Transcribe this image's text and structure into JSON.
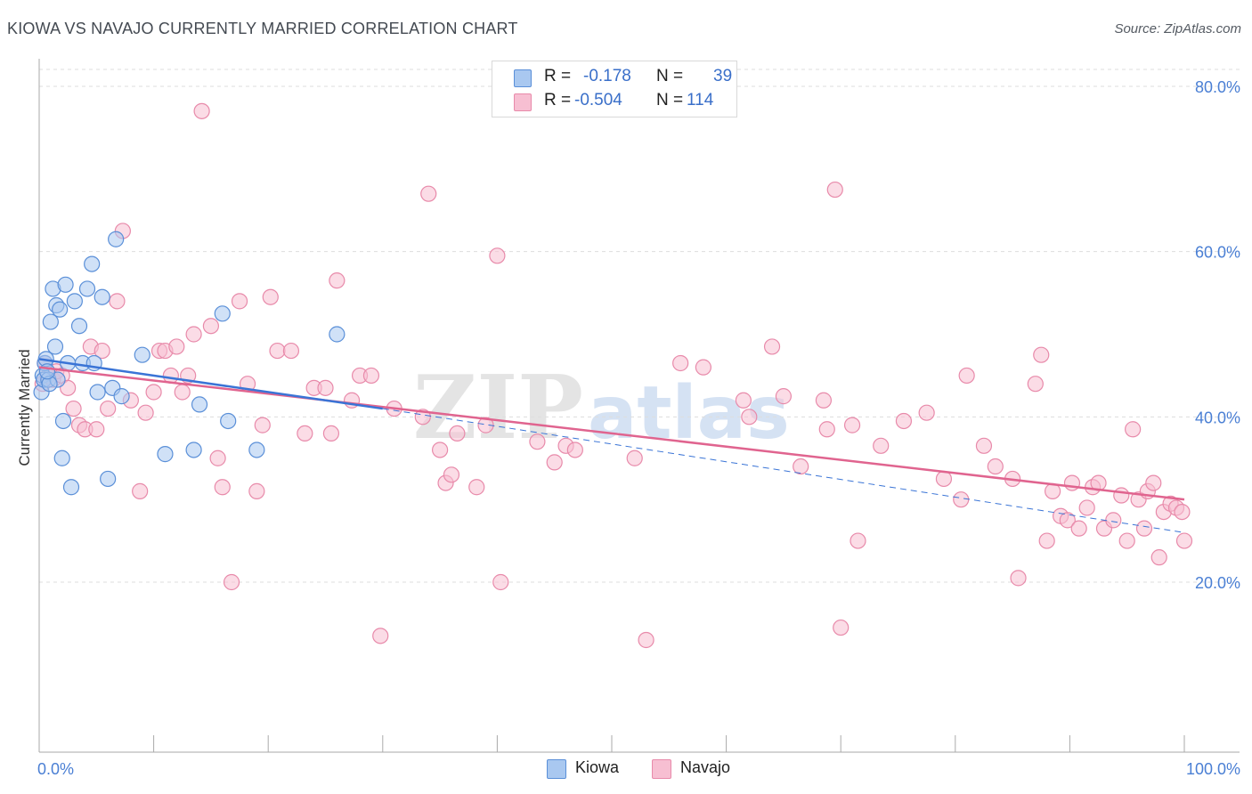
{
  "title": "KIOWA VS NAVAJO CURRENTLY MARRIED CORRELATION CHART",
  "source": "Source: ZipAtlas.com",
  "watermark": {
    "part1": "ZIP",
    "part2": "atlas"
  },
  "legend_top": {
    "rows": [
      {
        "r_label": "R =",
        "r_value": "-0.178",
        "n_label": "N =",
        "n_value": "39"
      },
      {
        "r_label": "R =",
        "r_value": "-0.504",
        "n_label": "N =",
        "n_value": "114"
      }
    ]
  },
  "colors": {
    "kiowa_fill": "#a9c8f0",
    "kiowa_stroke": "#5a8fd8",
    "kiowa_line": "#3a74d6",
    "navajo_fill": "#f7bfd2",
    "navajo_stroke": "#e88aaa",
    "navajo_line": "#e0648f",
    "tick_text": "#4a7fd4",
    "grid": "#dddddd"
  },
  "chart_data": {
    "type": "scatter",
    "title": "KIOWA VS NAVAJO CURRENTLY MARRIED CORRELATION CHART",
    "xlabel": "",
    "ylabel": "Currently Married",
    "xlim": [
      0,
      100
    ],
    "ylim": [
      0,
      85
    ],
    "x_tick_labels": [
      {
        "value": 0,
        "label": "0.0%"
      },
      {
        "value": 100,
        "label": "100.0%"
      }
    ],
    "y_tick_labels": [
      {
        "value": 20,
        "label": "20.0%"
      },
      {
        "value": 40,
        "label": "40.0%"
      },
      {
        "value": 60,
        "label": "60.0%"
      },
      {
        "value": 80,
        "label": "80.0%"
      }
    ],
    "x_minor_ticks": [
      0,
      10,
      20,
      30,
      40,
      50,
      60,
      70,
      80,
      90,
      100
    ],
    "y_gridlines": [
      20,
      40,
      60,
      80
    ],
    "legend": [
      "Kiowa",
      "Navajo"
    ],
    "series": [
      {
        "name": "Kiowa",
        "r": -0.178,
        "n": 39,
        "trend": {
          "x0": 0,
          "y0": 47.0,
          "x1": 30,
          "y1": 41.0
        },
        "trend_extension": {
          "x0": 30,
          "y0": 41.0,
          "x1": 100,
          "y1": 26.0
        },
        "points": [
          [
            0.2,
            43.0
          ],
          [
            0.3,
            45.0
          ],
          [
            0.4,
            44.5
          ],
          [
            0.5,
            46.5
          ],
          [
            0.6,
            47.0
          ],
          [
            0.8,
            44.5
          ],
          [
            1.0,
            51.5
          ],
          [
            1.2,
            55.5
          ],
          [
            1.4,
            48.5
          ],
          [
            1.5,
            53.5
          ],
          [
            1.6,
            44.5
          ],
          [
            1.8,
            53.0
          ],
          [
            2.0,
            35.0
          ],
          [
            2.1,
            39.5
          ],
          [
            2.3,
            56.0
          ],
          [
            2.5,
            46.5
          ],
          [
            2.8,
            31.5
          ],
          [
            3.1,
            54.0
          ],
          [
            3.5,
            51.0
          ],
          [
            3.8,
            46.5
          ],
          [
            4.2,
            55.5
          ],
          [
            4.6,
            58.5
          ],
          [
            4.8,
            46.5
          ],
          [
            5.1,
            43.0
          ],
          [
            5.5,
            54.5
          ],
          [
            6.0,
            32.5
          ],
          [
            6.4,
            43.5
          ],
          [
            6.7,
            61.5
          ],
          [
            7.2,
            42.5
          ],
          [
            9.0,
            47.5
          ],
          [
            11.0,
            35.5
          ],
          [
            13.5,
            36.0
          ],
          [
            14.0,
            41.5
          ],
          [
            16.0,
            52.5
          ],
          [
            16.5,
            39.5
          ],
          [
            19.0,
            36.0
          ],
          [
            26.0,
            50.0
          ],
          [
            0.9,
            44.0
          ],
          [
            0.7,
            45.5
          ]
        ]
      },
      {
        "name": "Navajo",
        "r": -0.504,
        "n": 114,
        "trend": {
          "x0": 0,
          "y0": 46.0,
          "x1": 100,
          "y1": 30.0
        },
        "points": [
          [
            0.3,
            44.0
          ],
          [
            0.5,
            46.5
          ],
          [
            0.8,
            45.0
          ],
          [
            1.2,
            44.5
          ],
          [
            1.5,
            45.5
          ],
          [
            2.0,
            45.0
          ],
          [
            2.5,
            43.5
          ],
          [
            3.0,
            41.0
          ],
          [
            3.5,
            39.0
          ],
          [
            4.0,
            38.5
          ],
          [
            4.5,
            48.5
          ],
          [
            5.0,
            38.5
          ],
          [
            5.5,
            48.0
          ],
          [
            6.0,
            41.0
          ],
          [
            6.8,
            54.0
          ],
          [
            7.3,
            62.5
          ],
          [
            8.0,
            42.0
          ],
          [
            8.8,
            31.0
          ],
          [
            9.3,
            40.5
          ],
          [
            10.0,
            43.0
          ],
          [
            10.5,
            48.0
          ],
          [
            11.0,
            48.0
          ],
          [
            11.5,
            45.0
          ],
          [
            12.0,
            48.5
          ],
          [
            12.5,
            43.0
          ],
          [
            13.0,
            45.0
          ],
          [
            13.5,
            50.0
          ],
          [
            14.2,
            77.0
          ],
          [
            15.0,
            51.0
          ],
          [
            15.6,
            35.0
          ],
          [
            16.0,
            31.5
          ],
          [
            16.8,
            20.0
          ],
          [
            17.5,
            54.0
          ],
          [
            18.2,
            44.0
          ],
          [
            19.0,
            31.0
          ],
          [
            19.5,
            39.0
          ],
          [
            20.2,
            54.5
          ],
          [
            20.8,
            48.0
          ],
          [
            22.0,
            48.0
          ],
          [
            23.2,
            38.0
          ],
          [
            24.0,
            43.5
          ],
          [
            25.0,
            43.5
          ],
          [
            25.5,
            38.0
          ],
          [
            26.0,
            56.5
          ],
          [
            27.3,
            42.0
          ],
          [
            28.0,
            45.0
          ],
          [
            29.0,
            45.0
          ],
          [
            29.8,
            13.5
          ],
          [
            31.0,
            41.0
          ],
          [
            33.5,
            40.0
          ],
          [
            34.0,
            67.0
          ],
          [
            35.0,
            36.0
          ],
          [
            35.5,
            32.0
          ],
          [
            36.0,
            33.0
          ],
          [
            36.5,
            38.0
          ],
          [
            38.2,
            31.5
          ],
          [
            39.0,
            39.0
          ],
          [
            40.0,
            59.5
          ],
          [
            40.3,
            20.0
          ],
          [
            43.5,
            37.0
          ],
          [
            45.0,
            34.5
          ],
          [
            46.0,
            36.5
          ],
          [
            46.8,
            36.0
          ],
          [
            52.0,
            35.0
          ],
          [
            53.0,
            13.0
          ],
          [
            56.0,
            46.5
          ],
          [
            58.0,
            46.0
          ],
          [
            61.5,
            42.0
          ],
          [
            62.0,
            40.0
          ],
          [
            64.0,
            48.5
          ],
          [
            65.0,
            42.5
          ],
          [
            66.5,
            34.0
          ],
          [
            68.5,
            42.0
          ],
          [
            68.8,
            38.5
          ],
          [
            69.5,
            67.5
          ],
          [
            70.0,
            14.5
          ],
          [
            71.0,
            39.0
          ],
          [
            71.5,
            25.0
          ],
          [
            73.5,
            36.5
          ],
          [
            75.5,
            39.5
          ],
          [
            77.5,
            40.5
          ],
          [
            79.0,
            32.5
          ],
          [
            80.5,
            30.0
          ],
          [
            81.0,
            45.0
          ],
          [
            82.5,
            36.5
          ],
          [
            83.5,
            34.0
          ],
          [
            85.0,
            32.5
          ],
          [
            85.5,
            20.5
          ],
          [
            87.0,
            44.0
          ],
          [
            87.5,
            47.5
          ],
          [
            88.0,
            25.0
          ],
          [
            88.5,
            31.0
          ],
          [
            89.2,
            28.0
          ],
          [
            89.8,
            27.5
          ],
          [
            90.2,
            32.0
          ],
          [
            90.8,
            26.5
          ],
          [
            91.5,
            29.0
          ],
          [
            92.0,
            31.5
          ],
          [
            92.5,
            32.0
          ],
          [
            93.0,
            26.5
          ],
          [
            93.8,
            27.5
          ],
          [
            94.5,
            30.5
          ],
          [
            95.0,
            25.0
          ],
          [
            95.5,
            38.5
          ],
          [
            96.0,
            30.0
          ],
          [
            96.8,
            31.0
          ],
          [
            97.3,
            32.0
          ],
          [
            97.8,
            23.0
          ],
          [
            98.2,
            28.5
          ],
          [
            98.8,
            29.5
          ],
          [
            99.3,
            29.0
          ],
          [
            99.8,
            28.5
          ],
          [
            100.0,
            25.0
          ],
          [
            96.5,
            26.5
          ]
        ]
      }
    ]
  },
  "legend_bottom": [
    {
      "name": "Kiowa"
    },
    {
      "name": "Navajo"
    }
  ]
}
